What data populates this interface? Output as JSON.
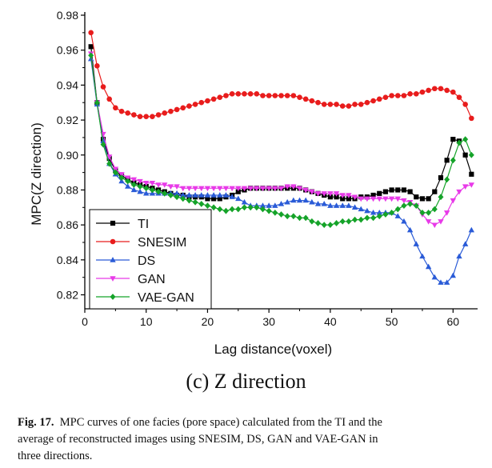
{
  "chart_data": {
    "type": "line",
    "xlabel": "Lag distance(voxel)",
    "ylabel": "MPC(Z direction)",
    "xlim": [
      0,
      64
    ],
    "ylim": [
      0.812,
      0.98
    ],
    "xticks": [
      "0",
      "10",
      "20",
      "30",
      "40",
      "50",
      "60"
    ],
    "xtick_values": [
      0,
      10,
      20,
      30,
      40,
      50,
      60
    ],
    "yticks": [
      "0.82",
      "0.84",
      "0.86",
      "0.88",
      "0.90",
      "0.92",
      "0.94",
      "0.96",
      "0.98"
    ],
    "ytick_values": [
      0.82,
      0.84,
      0.86,
      0.88,
      0.9,
      0.92,
      0.94,
      0.96,
      0.98
    ],
    "grid": false,
    "legend_position": "bottom-left",
    "x": [
      1,
      2,
      3,
      4,
      5,
      6,
      7,
      8,
      9,
      10,
      11,
      12,
      13,
      14,
      15,
      16,
      17,
      18,
      19,
      20,
      21,
      22,
      23,
      24,
      25,
      26,
      27,
      28,
      29,
      30,
      31,
      32,
      33,
      34,
      35,
      36,
      37,
      38,
      39,
      40,
      41,
      42,
      43,
      44,
      45,
      46,
      47,
      48,
      49,
      50,
      51,
      52,
      53,
      54,
      55,
      56,
      57,
      58,
      59,
      60,
      61,
      62,
      63
    ],
    "series": [
      {
        "name": "TI",
        "color": "#000000",
        "marker": "square",
        "values": [
          0.962,
          0.93,
          0.909,
          0.898,
          0.891,
          0.888,
          0.886,
          0.884,
          0.883,
          0.882,
          0.881,
          0.88,
          0.879,
          0.878,
          0.877,
          0.877,
          0.876,
          0.876,
          0.876,
          0.875,
          0.875,
          0.875,
          0.876,
          0.877,
          0.879,
          0.88,
          0.881,
          0.881,
          0.881,
          0.881,
          0.881,
          0.881,
          0.881,
          0.881,
          0.881,
          0.88,
          0.879,
          0.878,
          0.877,
          0.876,
          0.876,
          0.875,
          0.875,
          0.875,
          0.876,
          0.876,
          0.877,
          0.878,
          0.879,
          0.88,
          0.88,
          0.88,
          0.879,
          0.876,
          0.875,
          0.875,
          0.879,
          0.887,
          0.897,
          0.909,
          0.908,
          0.9,
          0.889
        ]
      },
      {
        "name": "SNESIM",
        "color": "#e81c1c",
        "marker": "circle",
        "values": [
          0.97,
          0.951,
          0.939,
          0.932,
          0.927,
          0.925,
          0.924,
          0.923,
          0.922,
          0.922,
          0.922,
          0.923,
          0.924,
          0.925,
          0.926,
          0.927,
          0.928,
          0.929,
          0.93,
          0.931,
          0.932,
          0.933,
          0.934,
          0.935,
          0.935,
          0.935,
          0.935,
          0.935,
          0.934,
          0.934,
          0.934,
          0.934,
          0.934,
          0.934,
          0.933,
          0.932,
          0.931,
          0.93,
          0.929,
          0.929,
          0.929,
          0.928,
          0.928,
          0.929,
          0.929,
          0.93,
          0.931,
          0.932,
          0.933,
          0.934,
          0.934,
          0.934,
          0.935,
          0.935,
          0.936,
          0.937,
          0.938,
          0.938,
          0.937,
          0.936,
          0.933,
          0.929,
          0.921
        ]
      },
      {
        "name": "DS",
        "color": "#2a5bd7",
        "marker": "triangle-up",
        "values": [
          0.955,
          0.929,
          0.908,
          0.895,
          0.889,
          0.885,
          0.882,
          0.88,
          0.879,
          0.878,
          0.878,
          0.878,
          0.878,
          0.878,
          0.878,
          0.877,
          0.877,
          0.877,
          0.877,
          0.877,
          0.877,
          0.877,
          0.877,
          0.876,
          0.875,
          0.873,
          0.871,
          0.871,
          0.871,
          0.871,
          0.871,
          0.872,
          0.873,
          0.874,
          0.874,
          0.874,
          0.873,
          0.872,
          0.872,
          0.871,
          0.871,
          0.871,
          0.871,
          0.87,
          0.869,
          0.868,
          0.867,
          0.867,
          0.867,
          0.867,
          0.865,
          0.862,
          0.857,
          0.849,
          0.842,
          0.836,
          0.83,
          0.827,
          0.827,
          0.831,
          0.842,
          0.849,
          0.857
        ]
      },
      {
        "name": "GAN",
        "color": "#e83ae8",
        "marker": "triangle-down",
        "values": [
          0.958,
          0.93,
          0.912,
          0.899,
          0.892,
          0.889,
          0.887,
          0.886,
          0.885,
          0.884,
          0.884,
          0.883,
          0.883,
          0.882,
          0.882,
          0.881,
          0.881,
          0.881,
          0.881,
          0.881,
          0.881,
          0.881,
          0.881,
          0.881,
          0.881,
          0.881,
          0.881,
          0.881,
          0.881,
          0.881,
          0.881,
          0.881,
          0.882,
          0.882,
          0.881,
          0.88,
          0.879,
          0.878,
          0.878,
          0.878,
          0.878,
          0.877,
          0.877,
          0.876,
          0.875,
          0.875,
          0.875,
          0.875,
          0.875,
          0.875,
          0.875,
          0.874,
          0.873,
          0.871,
          0.866,
          0.862,
          0.86,
          0.862,
          0.867,
          0.874,
          0.879,
          0.882,
          0.883
        ]
      },
      {
        "name": "VAE-GAN",
        "color": "#15a329",
        "marker": "diamond",
        "values": [
          0.957,
          0.93,
          0.906,
          0.895,
          0.89,
          0.887,
          0.885,
          0.883,
          0.882,
          0.881,
          0.88,
          0.879,
          0.878,
          0.877,
          0.876,
          0.875,
          0.874,
          0.873,
          0.872,
          0.871,
          0.87,
          0.869,
          0.868,
          0.869,
          0.869,
          0.87,
          0.87,
          0.87,
          0.869,
          0.868,
          0.867,
          0.866,
          0.865,
          0.865,
          0.864,
          0.864,
          0.862,
          0.861,
          0.86,
          0.86,
          0.861,
          0.862,
          0.862,
          0.863,
          0.863,
          0.864,
          0.864,
          0.865,
          0.866,
          0.867,
          0.869,
          0.871,
          0.872,
          0.871,
          0.867,
          0.867,
          0.869,
          0.876,
          0.886,
          0.897,
          0.907,
          0.909,
          0.9
        ]
      }
    ]
  },
  "subcaption": "(c) Z direction",
  "figure_caption": {
    "label": "Fig. 17.",
    "line1": "MPC curves of one facies (pore space) calculated from the TI and the",
    "line2": "average of reconstructed images using SNESIM, DS, GAN and VAE-GAN in",
    "line3": "three directions."
  }
}
